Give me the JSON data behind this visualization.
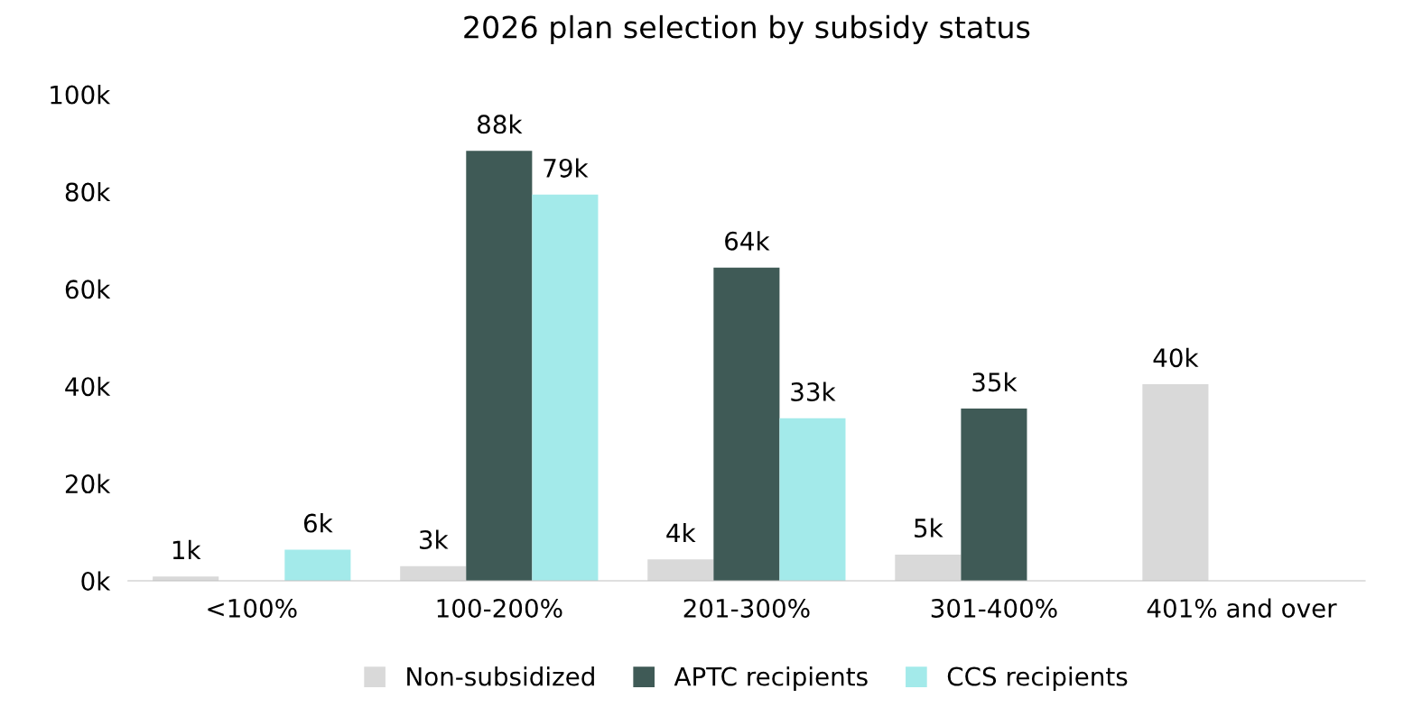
{
  "chart_data": {
    "type": "bar",
    "title": "2026 plan selection by subsidy status",
    "categories": [
      "<100%",
      "100-200%",
      "201-300%",
      "301-400%",
      "401% and over"
    ],
    "series": [
      {
        "name": "Non-subsidized",
        "color": "#d9d9d9",
        "values": [
          900,
          3000,
          4400,
          5400,
          40400
        ],
        "value_labels": [
          "1k",
          "3k",
          "4k",
          "5k",
          "40k"
        ]
      },
      {
        "name": "APTC recipients",
        "color": "#3f5a56",
        "values": [
          null,
          88400,
          64400,
          35400,
          null
        ],
        "value_labels": [
          null,
          "88k",
          "64k",
          "35k",
          null
        ]
      },
      {
        "name": "CCS recipients",
        "color": "#a3eaea",
        "values": [
          6400,
          79400,
          33400,
          null,
          null
        ],
        "value_labels": [
          "6k",
          "79k",
          "33k",
          null,
          null
        ]
      }
    ],
    "ylim": [
      0,
      100000
    ],
    "yticks": [
      {
        "value": 0,
        "label": "0k"
      },
      {
        "value": 20000,
        "label": "20k"
      },
      {
        "value": 40000,
        "label": "40k"
      },
      {
        "value": 60000,
        "label": "60k"
      },
      {
        "value": 80000,
        "label": "80k"
      },
      {
        "value": 100000,
        "label": "100k"
      }
    ],
    "grid": false,
    "legend": "bottom"
  }
}
